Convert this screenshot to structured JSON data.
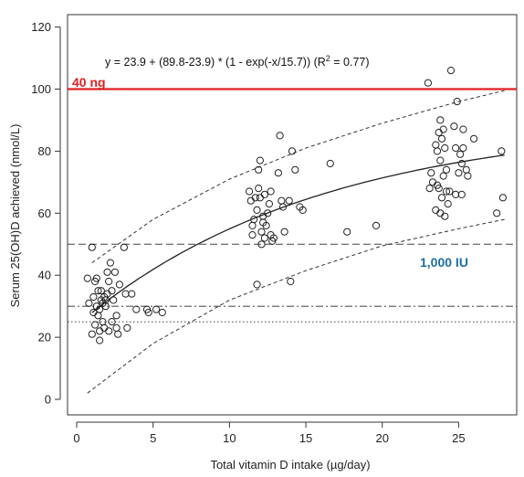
{
  "chart_data": {
    "type": "scatter",
    "title": "",
    "xlabel": "Total vitamin D intake (µg/day)",
    "ylabel": "Serum 25(OH)D achieved (nmol/L)",
    "xlim": [
      -0.6,
      28.8
    ],
    "ylim": [
      -5,
      124
    ],
    "x_ticks": [
      0,
      5,
      10,
      15,
      20,
      25
    ],
    "y_ticks": [
      0,
      20,
      40,
      60,
      80,
      100,
      120
    ],
    "grid": false,
    "fit": {
      "equation_prefix": "y = 23.9 + (89.8-23.9) * (1 - exp(-x/15.7)) (R",
      "equation_sup": "2",
      "equation_suffix": " = 0.77)",
      "a": 23.9,
      "b": 89.8,
      "k": 15.7,
      "x_range": [
        1,
        28
      ],
      "lower_band": [
        {
          "x": 0.7,
          "y": 2
        },
        {
          "x": 5,
          "y": 18
        },
        {
          "x": 10,
          "y": 32
        },
        {
          "x": 15,
          "y": 41.5
        },
        {
          "x": 20,
          "y": 49.5
        },
        {
          "x": 25,
          "y": 55
        },
        {
          "x": 28,
          "y": 58
        }
      ],
      "upper_band": [
        {
          "x": 1,
          "y": 44
        },
        {
          "x": 5,
          "y": 58
        },
        {
          "x": 10,
          "y": 71
        },
        {
          "x": 15,
          "y": 81
        },
        {
          "x": 20,
          "y": 89
        },
        {
          "x": 25,
          "y": 96
        },
        {
          "x": 28,
          "y": 99.5
        }
      ]
    },
    "reference_lines": [
      {
        "y": 100,
        "style": "solid",
        "color": "#e02020",
        "label": "40 ng"
      },
      {
        "y": 50,
        "style": "dashed",
        "color": "#444444",
        "label": "1,000 IU"
      },
      {
        "y": 30,
        "style": "dashdot",
        "color": "#555555",
        "label": ""
      },
      {
        "y": 25,
        "style": "dotted",
        "color": "#555555",
        "label": ""
      }
    ],
    "annotation_colors": {
      "red": "#e02020",
      "blue": "#1c6ea4"
    },
    "points": [
      [
        0.7,
        39
      ],
      [
        0.8,
        31
      ],
      [
        1.0,
        49
      ],
      [
        1.0,
        21
      ],
      [
        1.1,
        28
      ],
      [
        1.1,
        33
      ],
      [
        1.2,
        38
      ],
      [
        1.2,
        24
      ],
      [
        1.3,
        39
      ],
      [
        1.3,
        30
      ],
      [
        1.4,
        35
      ],
      [
        1.4,
        27
      ],
      [
        1.5,
        22
      ],
      [
        1.5,
        29
      ],
      [
        1.5,
        19
      ],
      [
        1.6,
        32
      ],
      [
        1.6,
        35
      ],
      [
        1.7,
        31
      ],
      [
        1.7,
        25
      ],
      [
        1.8,
        33
      ],
      [
        1.8,
        23
      ],
      [
        1.9,
        30
      ],
      [
        1.9,
        32
      ],
      [
        2.0,
        41
      ],
      [
        2.0,
        34
      ],
      [
        2.1,
        38
      ],
      [
        2.1,
        22
      ],
      [
        2.2,
        44
      ],
      [
        2.3,
        35
      ],
      [
        2.3,
        25
      ],
      [
        2.4,
        32
      ],
      [
        2.5,
        41
      ],
      [
        2.6,
        27
      ],
      [
        2.6,
        23
      ],
      [
        2.7,
        21
      ],
      [
        2.8,
        37
      ],
      [
        3.1,
        49
      ],
      [
        3.2,
        34
      ],
      [
        3.3,
        23
      ],
      [
        3.6,
        34
      ],
      [
        3.9,
        29
      ],
      [
        4.6,
        29
      ],
      [
        4.7,
        28
      ],
      [
        5.2,
        29
      ],
      [
        5.6,
        28
      ],
      [
        11.3,
        67
      ],
      [
        11.4,
        64
      ],
      [
        11.5,
        56
      ],
      [
        11.5,
        53
      ],
      [
        11.6,
        58
      ],
      [
        11.7,
        65
      ],
      [
        11.8,
        61
      ],
      [
        11.9,
        74
      ],
      [
        11.9,
        68
      ],
      [
        12.0,
        77
      ],
      [
        12.0,
        65
      ],
      [
        12.1,
        54
      ],
      [
        12.1,
        50
      ],
      [
        12.2,
        59
      ],
      [
        12.2,
        57
      ],
      [
        12.3,
        66
      ],
      [
        12.3,
        52
      ],
      [
        12.4,
        56
      ],
      [
        12.5,
        60
      ],
      [
        12.6,
        63
      ],
      [
        12.7,
        67
      ],
      [
        12.7,
        53
      ],
      [
        12.8,
        51
      ],
      [
        12.9,
        52
      ],
      [
        13.2,
        73
      ],
      [
        13.3,
        85
      ],
      [
        13.4,
        64
      ],
      [
        13.5,
        62
      ],
      [
        13.6,
        54
      ],
      [
        13.9,
        64
      ],
      [
        14.0,
        38
      ],
      [
        14.1,
        80
      ],
      [
        14.3,
        74
      ],
      [
        14.6,
        62
      ],
      [
        14.8,
        61
      ],
      [
        11.8,
        37
      ],
      [
        16.6,
        76
      ],
      [
        17.7,
        54
      ],
      [
        19.6,
        56
      ],
      [
        23.0,
        102
      ],
      [
        23.1,
        68
      ],
      [
        23.2,
        73
      ],
      [
        23.3,
        70
      ],
      [
        23.5,
        82
      ],
      [
        23.5,
        61
      ],
      [
        23.6,
        80
      ],
      [
        23.6,
        69
      ],
      [
        23.7,
        86
      ],
      [
        23.7,
        68
      ],
      [
        23.8,
        90
      ],
      [
        23.8,
        77
      ],
      [
        23.8,
        60
      ],
      [
        23.9,
        84
      ],
      [
        23.9,
        65
      ],
      [
        24.0,
        87
      ],
      [
        24.0,
        72
      ],
      [
        24.1,
        81
      ],
      [
        24.1,
        59
      ],
      [
        24.2,
        74
      ],
      [
        24.2,
        67
      ],
      [
        24.3,
        63
      ],
      [
        24.4,
        67
      ],
      [
        24.5,
        106
      ],
      [
        24.7,
        88
      ],
      [
        24.8,
        81
      ],
      [
        24.8,
        66
      ],
      [
        24.9,
        96
      ],
      [
        25.0,
        73
      ],
      [
        25.1,
        79
      ],
      [
        25.2,
        76
      ],
      [
        25.2,
        66
      ],
      [
        25.3,
        87
      ],
      [
        25.3,
        81
      ],
      [
        25.5,
        74
      ],
      [
        25.6,
        72
      ],
      [
        26.0,
        84
      ],
      [
        27.5,
        60
      ],
      [
        27.8,
        80
      ],
      [
        27.9,
        65
      ]
    ]
  }
}
